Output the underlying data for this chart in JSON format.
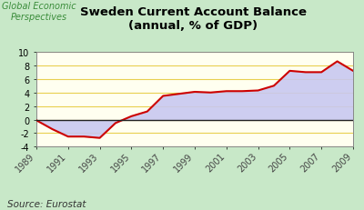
{
  "title": "Sweden Current Account Balance\n(annual, % of GDP)",
  "source_text": "Source: Eurostat",
  "watermark": "Global Economic\nPerspectives",
  "years": [
    1989,
    1990,
    1991,
    1992,
    1993,
    1994,
    1995,
    1996,
    1997,
    1998,
    1999,
    2000,
    2001,
    2002,
    2003,
    2004,
    2005,
    2006,
    2007,
    2008,
    2009
  ],
  "values": [
    -0.1,
    -1.4,
    -2.5,
    -2.5,
    -2.7,
    -0.5,
    0.5,
    1.2,
    3.5,
    3.8,
    4.1,
    4.0,
    4.2,
    4.2,
    4.3,
    5.0,
    7.2,
    7.0,
    7.0,
    8.6,
    7.2
  ],
  "background_outer": "#c8e8c8",
  "background_plot": "#fffff0",
  "line_color": "#cc0000",
  "fill_color": "#c8c8f0",
  "fill_alpha": 0.9,
  "zero_line_color": "#222222",
  "grid_color": "#e8d050",
  "ylim": [
    -4,
    10
  ],
  "yticks": [
    -4,
    -2,
    0,
    2,
    4,
    6,
    8,
    10
  ],
  "xtick_years": [
    1989,
    1991,
    1993,
    1995,
    1997,
    1999,
    2001,
    2003,
    2005,
    2007,
    2009
  ],
  "title_fontsize": 9.5,
  "tick_fontsize": 7,
  "watermark_color": "#3a8c3a",
  "watermark_fontsize": 7,
  "source_fontsize": 7.5
}
